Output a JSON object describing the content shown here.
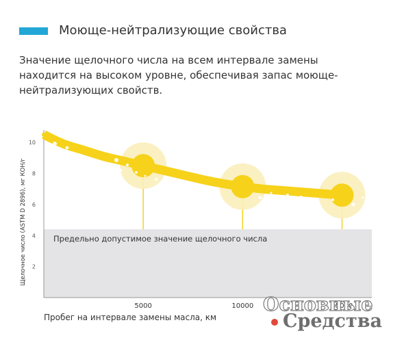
{
  "header": {
    "title": "Моюще-нейтрализующие свойства",
    "accent_color": "#22a7d6"
  },
  "description": "Значение щелочного числа на всем интервале замены находится на высоком уровне, обеспечивая запас моюще-нейтрализующих свойств.",
  "chart_data": {
    "type": "line",
    "xlabel": "Пробег на интервале замены масла, км",
    "ylabel": "Щелочное число (ASTM D 2896), мг КОН/г",
    "xlim": [
      0,
      16500
    ],
    "ylim": [
      0,
      10.8
    ],
    "x_ticks": [
      5000,
      10000,
      15000
    ],
    "x_tick_labels": [
      "5000",
      "10000",
      "15000"
    ],
    "y_ticks": [
      2,
      4,
      6,
      8,
      10
    ],
    "y_tick_labels": [
      "2",
      "4",
      "6",
      "8",
      "10"
    ],
    "series": [
      {
        "x": [
          0,
          1000,
          2000,
          3000,
          4000,
          5000,
          6000,
          7000,
          8000,
          9000,
          10000,
          11000,
          12000,
          13000,
          14000,
          15000
        ],
        "values": [
          10.5,
          9.9,
          9.5,
          9.1,
          8.8,
          8.5,
          8.2,
          7.9,
          7.6,
          7.35,
          7.15,
          7.0,
          6.9,
          6.8,
          6.7,
          6.6
        ],
        "color": "#f6d21a"
      }
    ],
    "highlight_points": [
      {
        "x": 5000,
        "y": 8.5
      },
      {
        "x": 10000,
        "y": 7.15
      },
      {
        "x": 15000,
        "y": 6.6
      }
    ],
    "threshold": {
      "value": 4.4,
      "label": "Предельно допустимое значение щелочного числа",
      "color": "#e4e3e6"
    },
    "grid": false
  },
  "watermark": {
    "line1": "Основные",
    "line2": "Средства"
  }
}
